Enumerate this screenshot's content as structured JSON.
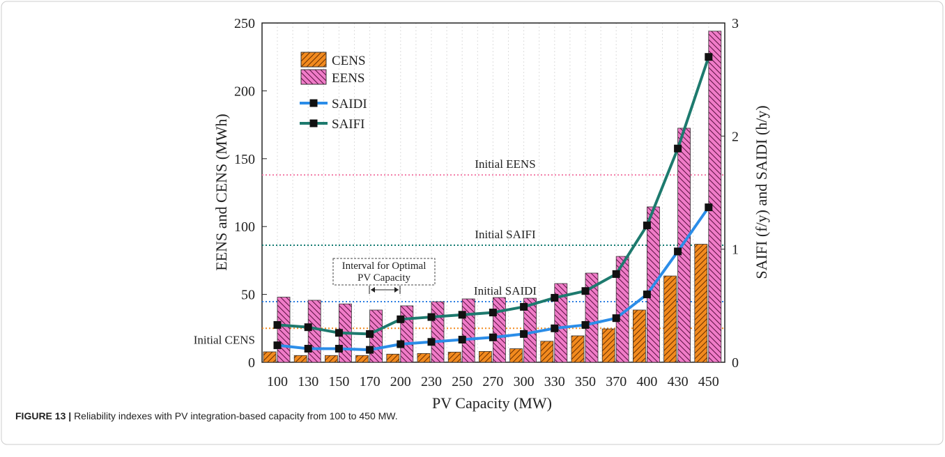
{
  "chart_data": {
    "type": "bar_line",
    "x_label": "PV Capacity (MW)",
    "y_label": "EENS and CENS (MWh)",
    "y2_label": "SAIFI (f/y) and SAIDI (h/y)",
    "categories": [
      "100",
      "130",
      "150",
      "170",
      "200",
      "230",
      "250",
      "270",
      "300",
      "330",
      "350",
      "370",
      "400",
      "430",
      "450"
    ],
    "series": [
      {
        "name": "CENS",
        "kind": "bar",
        "color": "#f28a1e",
        "hatch": "forward",
        "values": [
          7.7,
          5,
          5,
          5,
          6,
          6.5,
          7.5,
          8,
          10,
          15.5,
          19.5,
          24.6,
          38.5,
          63.6,
          87
        ]
      },
      {
        "name": "EENS",
        "kind": "bar",
        "color": "#f07cc8",
        "hatch": "back",
        "values": [
          48,
          45.7,
          43,
          38.5,
          41.6,
          44.6,
          46.7,
          47.7,
          47.2,
          58,
          65.7,
          78,
          114.5,
          172.5,
          244
        ]
      },
      {
        "name": "SAIDI",
        "kind": "line",
        "axis": "y2",
        "color": "#2b8de8",
        "values": [
          0.15,
          0.12,
          0.12,
          0.11,
          0.16,
          0.18,
          0.2,
          0.22,
          0.25,
          0.3,
          0.33,
          0.39,
          0.6,
          0.98,
          1.37
        ]
      },
      {
        "name": "SAIFI",
        "kind": "line",
        "axis": "y2",
        "color": "#1d7a6e",
        "values": [
          0.33,
          0.31,
          0.26,
          0.25,
          0.38,
          0.4,
          0.42,
          0.44,
          0.49,
          0.57,
          0.63,
          0.78,
          1.21,
          1.89,
          2.7
        ]
      }
    ],
    "reference_lines": [
      {
        "label": "Initial EENS",
        "value": 138,
        "axis": "y",
        "color": "#f27ca8"
      },
      {
        "label": "Initial SAIFI",
        "value": 1.035,
        "axis": "y2",
        "color": "#127a70"
      },
      {
        "label": "Initial SAIDI",
        "value": 0.536,
        "axis": "y2",
        "color": "#2a7de1"
      },
      {
        "label": "Initial CENS",
        "value": 25,
        "axis": "y",
        "color": "#f28a1e"
      }
    ],
    "annotation": {
      "lines": [
        "Interval for Optimal",
        "PV Capacity"
      ]
    },
    "ylim": [
      0,
      250
    ],
    "yticks": [
      0,
      50,
      100,
      150,
      200,
      250
    ],
    "y2lim": [
      0,
      3
    ],
    "y2ticks": [
      0,
      1,
      2,
      3
    ]
  },
  "caption": {
    "label": "FIGURE 13 |",
    "text": "Reliability indexes with PV integration-based capacity from 100 to 450 MW."
  }
}
